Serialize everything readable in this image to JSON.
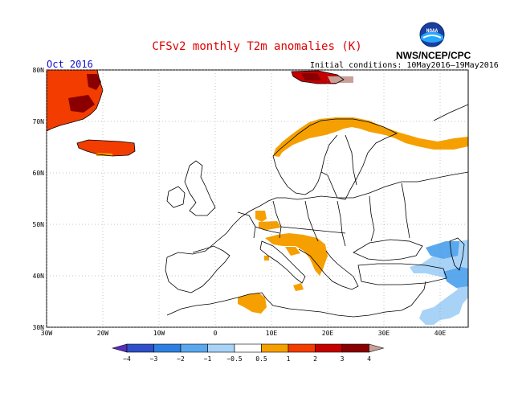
{
  "title": "CFSv2 monthly T2m anomalies (K)",
  "agency": "NWS/NCEP/CPC",
  "logo_text": "NOAA",
  "month": "Oct 2016",
  "initial_conditions": "Initial conditions: 10May2016–19May2016",
  "map": {
    "lat_ticks": [
      "80N",
      "70N",
      "60N",
      "50N",
      "40N",
      "30N"
    ],
    "lon_ticks": [
      "30W",
      "20W",
      "10W",
      "0",
      "10E",
      "20E",
      "30E",
      "40E"
    ]
  },
  "colorbar": {
    "labels": [
      "−4",
      "−3",
      "−2",
      "−1",
      "−0.5",
      "0.5",
      "1",
      "2",
      "3",
      "4"
    ],
    "colors": [
      "#5a2dbd",
      "#2e4fc7",
      "#2f7fe0",
      "#5aa8ee",
      "#a8d3f7",
      "#ffffff",
      "#f5a000",
      "#f23c00",
      "#c40000",
      "#8a0000",
      "#c8a098"
    ]
  },
  "colors": {
    "warm_light": "#f5a000",
    "warm_mid": "#f23c00",
    "warm_strong": "#c40000",
    "warm_dark": "#8a0000",
    "warm_extreme": "#c8a098",
    "cool_light": "#a8d3f7",
    "cool_mid": "#5aa8ee",
    "title": "#e00000",
    "month": "#1010d0"
  }
}
